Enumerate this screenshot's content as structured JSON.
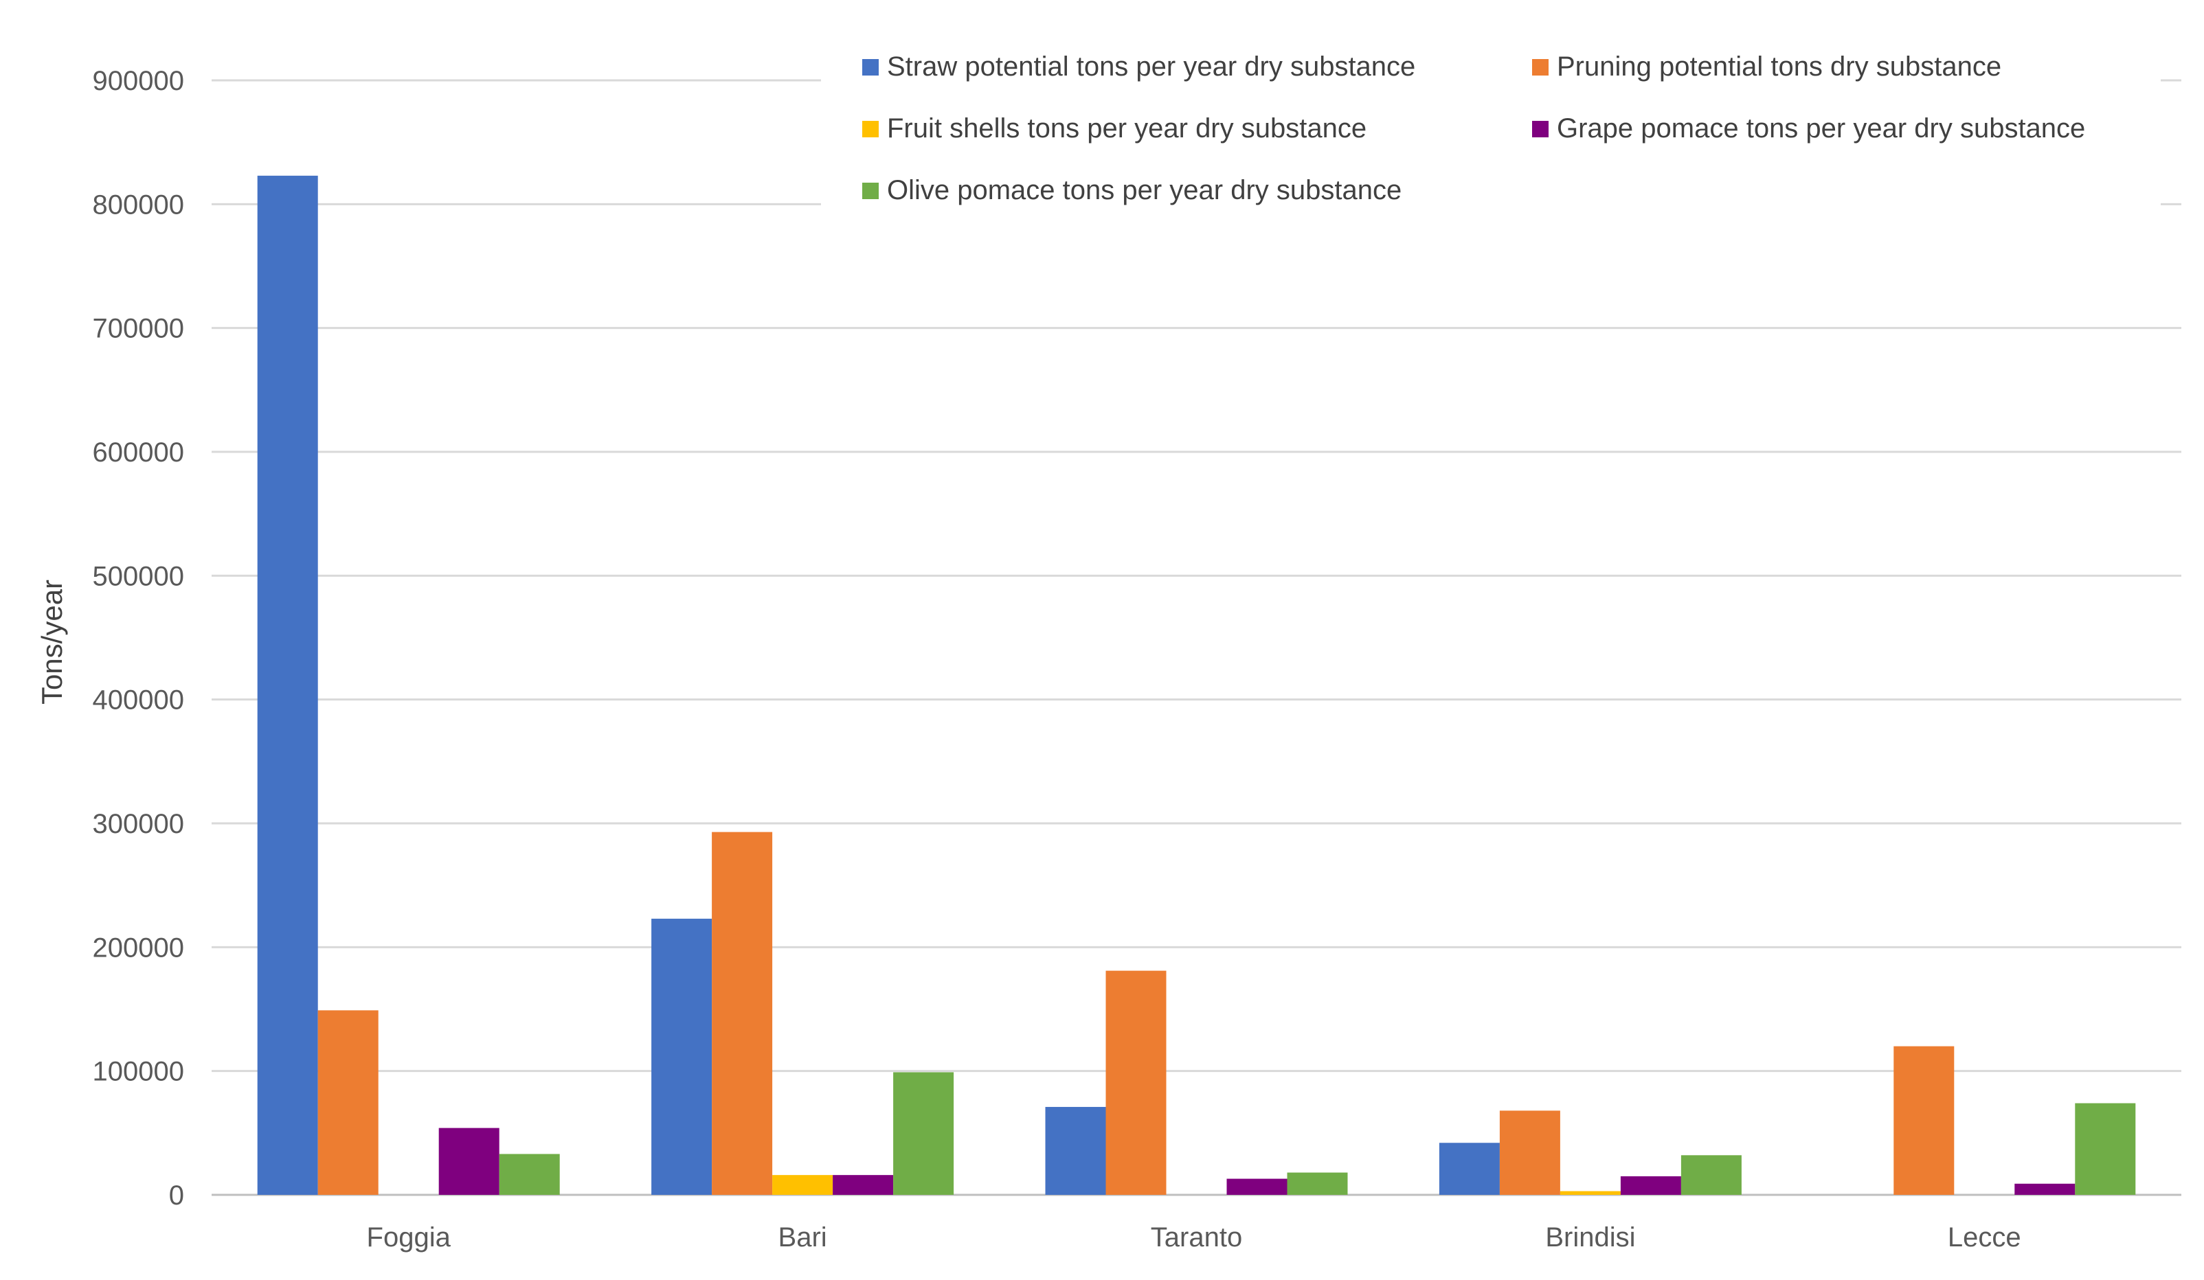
{
  "chart_data": {
    "type": "bar",
    "title": "",
    "xlabel": "",
    "ylabel": "Tons/year",
    "ylim": [
      0,
      900000
    ],
    "yticks": [
      "0",
      "100000",
      "200000",
      "300000",
      "400000",
      "500000",
      "600000",
      "700000",
      "800000",
      "900000"
    ],
    "grid": true,
    "legend_position": "top-right",
    "categories": [
      "Foggia",
      "Bari",
      "Taranto",
      "Brindisi",
      "Lecce"
    ],
    "series": [
      {
        "name": "Straw potential tons per year dry substance",
        "color": "#4472C4",
        "values": [
          823000,
          223000,
          71000,
          42000,
          0
        ]
      },
      {
        "name": "Pruning potential tons dry substance",
        "color": "#ED7D31",
        "values": [
          149000,
          293000,
          181000,
          68000,
          120000
        ]
      },
      {
        "name": "Fruit shells tons per year dry substance",
        "color": "#FFC000",
        "values": [
          0,
          16000,
          0,
          3000,
          0
        ]
      },
      {
        "name": "Grape pomace tons per year dry substance",
        "color": "#7F007F",
        "values": [
          54000,
          16000,
          13000,
          15000,
          9000
        ]
      },
      {
        "name": "Olive pomace tons per year dry substance",
        "color": "#70AD47",
        "values": [
          33000,
          99000,
          18000,
          32000,
          74000
        ]
      }
    ]
  }
}
